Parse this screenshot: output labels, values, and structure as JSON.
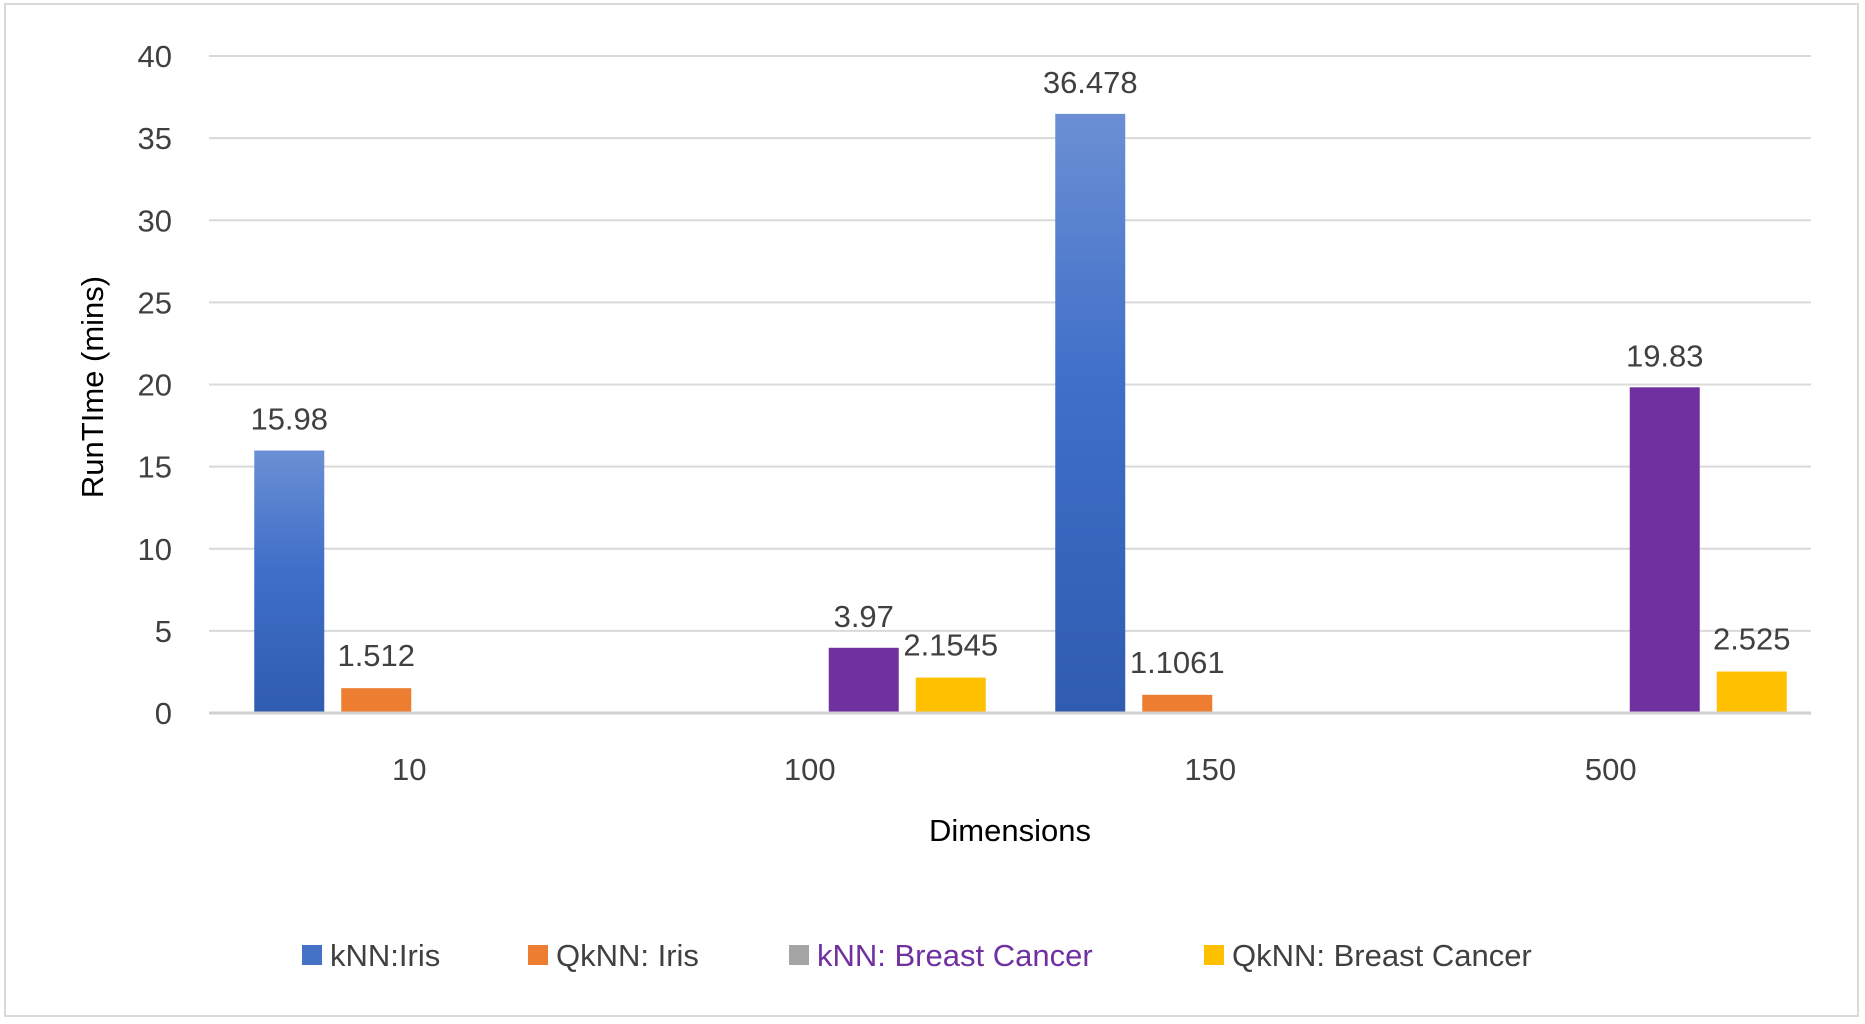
{
  "chart_data": {
    "type": "bar",
    "title": "",
    "xlabel": "Dimensions",
    "ylabel": "RunTIme (mins)",
    "categories": [
      "10",
      "100",
      "150",
      "500"
    ],
    "ylim": [
      0,
      40
    ],
    "yticks": [
      0,
      5,
      10,
      15,
      20,
      25,
      30,
      35,
      40
    ],
    "grid": true,
    "legend_position": "bottom",
    "series": [
      {
        "name": "kNN:Iris",
        "color": "#4472c4",
        "values": [
          15.98,
          null,
          36.478,
          null
        ],
        "labels": [
          "15.98",
          "",
          "36.478",
          ""
        ]
      },
      {
        "name": "QkNN: Iris",
        "color": "#ed7d31",
        "values": [
          1.512,
          null,
          1.1061,
          null
        ],
        "labels": [
          "1.512",
          "",
          "1.1061",
          ""
        ]
      },
      {
        "name": "kNN: Breast Cancer",
        "color": "#7030a0",
        "legend_swatch_color": "#a5a5a5",
        "legend_text_color": "#7030a0",
        "values": [
          null,
          3.97,
          null,
          19.83
        ],
        "labels": [
          "",
          "3.97",
          "",
          "19.83"
        ]
      },
      {
        "name": "QkNN: Breast Cancer",
        "color": "#ffc000",
        "values": [
          null,
          2.1545,
          null,
          2.525
        ],
        "labels": [
          "",
          "2.1545",
          "",
          "2.525"
        ]
      }
    ]
  }
}
